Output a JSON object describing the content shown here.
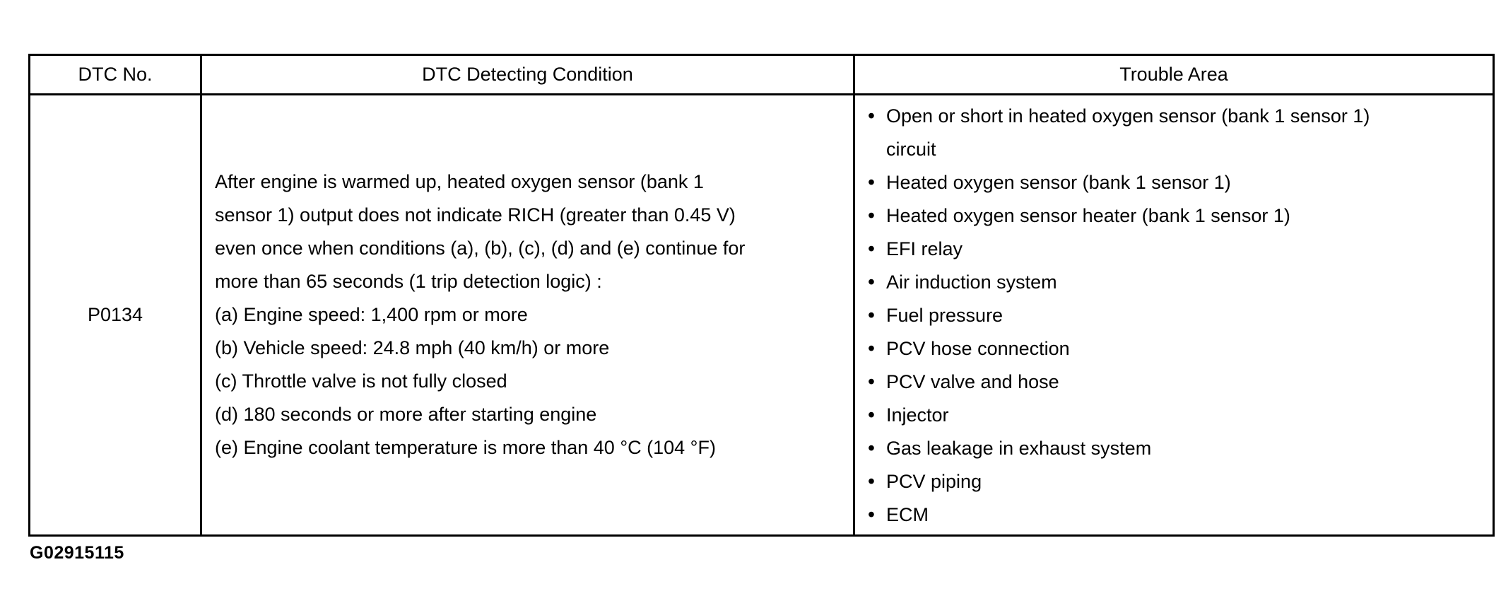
{
  "table": {
    "headers": [
      "DTC No.",
      "DTC Detecting Condition",
      "Trouble Area"
    ],
    "row": {
      "dtc_no": "P0134",
      "detecting_condition": {
        "intro_lines": [
          "After engine is warmed up, heated oxygen sensor (bank 1",
          "sensor 1) output does not indicate RICH (greater than 0.45 V)",
          "even once when conditions (a), (b), (c), (d) and (e) continue for",
          "more than 65 seconds (1 trip detection logic) :"
        ],
        "conditions": [
          "(a) Engine speed: 1,400 rpm or more",
          "(b) Vehicle speed: 24.8 mph (40 km/h) or more",
          "(c) Throttle valve is not fully closed",
          "(d) 180 seconds or more after starting engine",
          "(e) Engine coolant temperature is more than 40 °C (104 °F)"
        ]
      },
      "trouble_areas": [
        "Open or short in heated oxygen sensor (bank 1 sensor 1) circuit",
        "Heated oxygen sensor (bank 1 sensor 1)",
        "Heated oxygen sensor heater (bank 1 sensor 1)",
        "EFI relay",
        "Air induction system",
        "Fuel pressure",
        "PCV hose connection",
        "PCV valve and hose",
        "Injector",
        "Gas leakage in exhaust system",
        "PCV piping",
        "ECM"
      ]
    }
  },
  "figure_code": "G02915115"
}
